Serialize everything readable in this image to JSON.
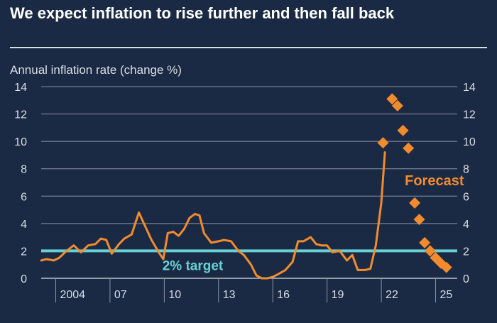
{
  "chart_data": {
    "type": "line",
    "title": "We expect inflation to rise further and then fall back",
    "ylabel": "Annual inflation rate (change %)",
    "xlabel": "",
    "xlim": [
      2003,
      2026
    ],
    "ylim": [
      0,
      14
    ],
    "yticks": [
      0,
      2,
      4,
      6,
      8,
      10,
      12,
      14
    ],
    "xtick_labels": [
      "2004",
      "07",
      "10",
      "13",
      "16",
      "19",
      "22",
      "25"
    ],
    "xtick_values": [
      2004,
      2007,
      2010,
      2013,
      2016,
      2019,
      2022,
      2025
    ],
    "grid": true,
    "right_axis": true,
    "target": {
      "value": 2,
      "label": "2% target"
    },
    "forecast_label": "Forecast",
    "series": [
      {
        "kind": "line",
        "color": "#f28b2d",
        "x": [
          2003.0,
          2003.3,
          2003.7,
          2004.0,
          2004.4,
          2004.8,
          2005.2,
          2005.6,
          2006.0,
          2006.3,
          2006.6,
          2006.9,
          2007.3,
          2007.6,
          2008.0,
          2008.4,
          2008.75,
          2009.1,
          2009.5,
          2009.75,
          2010.0,
          2010.3,
          2010.6,
          2010.9,
          2011.2,
          2011.5,
          2011.75,
          2012.0,
          2012.4,
          2012.8,
          2013.1,
          2013.5,
          2013.9,
          2014.2,
          2014.6,
          2014.9,
          2015.2,
          2015.5,
          2015.8,
          2016.1,
          2016.5,
          2016.9,
          2017.2,
          2017.5,
          2017.9,
          2018.2,
          2018.5,
          2018.8,
          2019.1,
          2019.5,
          2019.9,
          2020.2,
          2020.5,
          2020.9,
          2021.2,
          2021.5,
          2021.8,
          2022.0
        ],
        "y": [
          1.3,
          1.4,
          1.3,
          1.5,
          2.0,
          2.4,
          1.9,
          2.4,
          2.5,
          2.9,
          2.8,
          1.8,
          2.5,
          2.9,
          3.2,
          4.8,
          3.8,
          2.8,
          1.9,
          1.4,
          3.3,
          3.4,
          3.1,
          3.6,
          4.4,
          4.7,
          4.6,
          3.3,
          2.6,
          2.7,
          2.8,
          2.7,
          2.0,
          1.7,
          1.0,
          0.2,
          0.0,
          0.0,
          0.1,
          0.3,
          0.6,
          1.2,
          2.7,
          2.7,
          3.0,
          2.5,
          2.4,
          2.4,
          1.9,
          2.0,
          1.3,
          1.7,
          0.6,
          0.6,
          0.7,
          2.4,
          5.5,
          9.2
        ]
      },
      {
        "kind": "markers",
        "name": "Forecast",
        "color": "#f28b2d",
        "x": [
          2021.9,
          2022.4,
          2022.7,
          2023.0,
          2023.3,
          2023.65,
          2023.9,
          2024.2,
          2024.5,
          2024.8,
          2025.1,
          2025.4
        ],
        "y": [
          9.9,
          13.1,
          12.6,
          10.8,
          9.5,
          5.5,
          4.3,
          2.6,
          2.0,
          1.5,
          1.1,
          0.8
        ]
      }
    ]
  },
  "colors": {
    "background": "#1b2a44",
    "grid": "#8a93a3",
    "text": "#d9dde4",
    "target_line": "#66d0d4",
    "series": "#f28b2d"
  }
}
